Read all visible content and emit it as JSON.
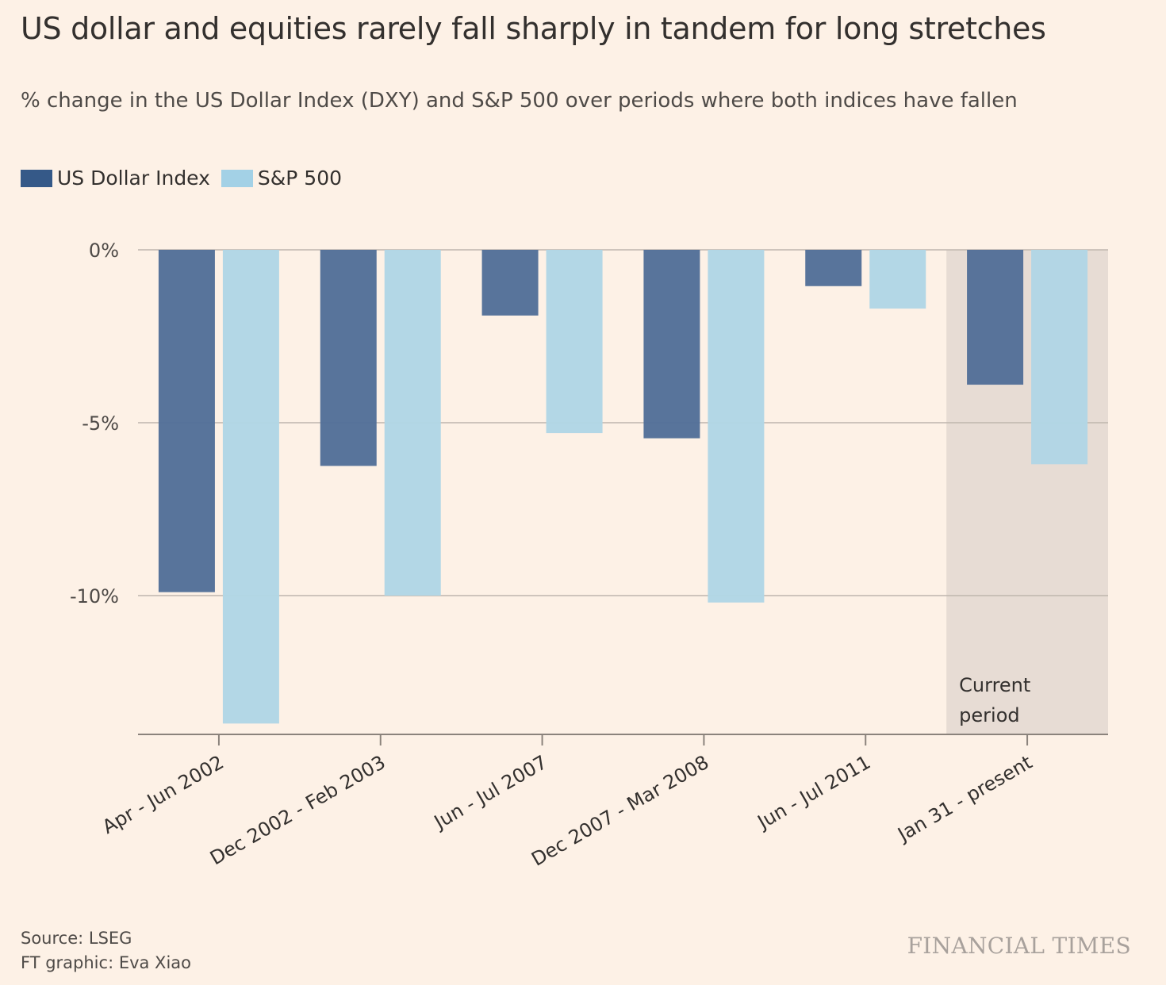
{
  "title": "US dollar and equities rarely fall sharply in tandem for long stretches",
  "subtitle": "% change in the US Dollar Index (DXY) and S&P 500 over periods where both indices have fallen",
  "source": "Source: LSEG",
  "credit": "FT graphic: Eva Xiao",
  "brand": "FINANCIAL TIMES",
  "colors": {
    "background": "#fdf1e6",
    "dollar": "#536f98",
    "sp500": "#b1d6e5",
    "legend_dollar": "#355988",
    "legend_sp500": "#a3d1e6",
    "highlight": "#e7dcd4",
    "gridline": "#bfb6ad"
  },
  "chart_data": {
    "type": "bar",
    "categories": [
      "Apr - Jun 2002",
      "Dec 2002 - Feb 2003",
      "Jun - Jul 2007",
      "Dec 2007 - Mar 2008",
      "Jun - Jul 2011",
      "Jan 31 - present"
    ],
    "series": [
      {
        "name": "US Dollar Index",
        "values": [
          -9.9,
          -6.25,
          -1.9,
          -5.45,
          -1.05,
          -3.9
        ]
      },
      {
        "name": "S&P 500",
        "values": [
          -13.7,
          -10.0,
          -5.3,
          -10.2,
          -1.7,
          -6.2
        ]
      }
    ],
    "ylim": [
      -14,
      0
    ],
    "yticks": [
      0,
      -5,
      -10
    ],
    "ytick_labels": [
      "0%",
      "-5%",
      "-10%"
    ],
    "highlight_category": "Jan 31 - present",
    "highlight_label_lines": [
      "Current",
      "period"
    ],
    "legend_position": "top-left",
    "grid": true
  }
}
